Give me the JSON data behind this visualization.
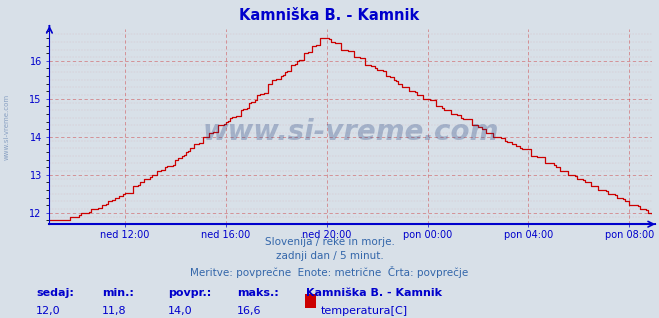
{
  "title": "Kamniška B. - Kamnik",
  "title_color": "#0000cc",
  "bg_color": "#d8e0e8",
  "plot_bg_color": "#d8e0e8",
  "line_color": "#cc0000",
  "axis_color": "#0000cc",
  "grid_color_h": "#cc0000",
  "grid_color_v": "#cc0000",
  "grid_alpha": 0.4,
  "ylim_min": 11.7,
  "ylim_max": 16.85,
  "yticks": [
    12,
    13,
    14,
    15,
    16
  ],
  "tick_color": "#0000cc",
  "xtick_labels": [
    "ned 12:00",
    "ned 16:00",
    "ned 20:00",
    "pon 00:00",
    "pon 04:00",
    "pon 08:00"
  ],
  "watermark": "www.si-vreme.com",
  "watermark_color": "#1a3a7a",
  "watermark_alpha": 0.28,
  "side_label": "www.si-vreme.com",
  "subtitle1": "Slovenija / reke in morje.",
  "subtitle2": "zadnji dan / 5 minut.",
  "subtitle3": "Meritve: povprečne  Enote: metrične  Črta: povprečje",
  "subtitle_color": "#3366aa",
  "footer_labels": [
    "sedaj:",
    "min.:",
    "povpr.:",
    "maks.:"
  ],
  "footer_vals": [
    "12,0",
    "11,8",
    "14,0",
    "16,6"
  ],
  "footer_station": "Kamniška B. - Kamnik",
  "footer_series": "temperatura[C]",
  "footer_color_label": "#0000cc",
  "footer_color_val": "#0000cc",
  "legend_rect_color": "#cc0000",
  "n_points": 288,
  "xtick_positions": [
    36,
    84,
    132,
    180,
    228,
    276
  ]
}
